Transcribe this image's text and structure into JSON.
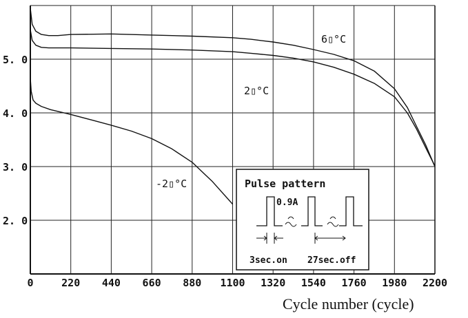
{
  "chart_data": {
    "type": "line",
    "xlabel": "Cycle number (cycle)",
    "ylabel": "",
    "xlim": [
      0,
      2200
    ],
    "ylim": [
      1.0,
      6.0
    ],
    "x_ticks": [
      "0",
      "220",
      "440",
      "660",
      "880",
      "1100",
      "1320",
      "1540",
      "1760",
      "1980",
      "2200"
    ],
    "y_ticks": [
      "2.0",
      "3.0",
      "4.0",
      "5.0"
    ],
    "grid": true,
    "series": [
      {
        "name": "60°C",
        "label_text": "6▯°C",
        "x": [
          0,
          10,
          30,
          60,
          100,
          150,
          220,
          440,
          660,
          880,
          1100,
          1200,
          1320,
          1430,
          1540,
          1650,
          1760,
          1870,
          1980,
          2050,
          2100,
          2150,
          2175,
          2190,
          2200
        ],
        "y": [
          5.95,
          5.65,
          5.52,
          5.46,
          5.44,
          5.44,
          5.46,
          5.47,
          5.45,
          5.43,
          5.4,
          5.37,
          5.32,
          5.26,
          5.18,
          5.09,
          4.97,
          4.78,
          4.45,
          4.1,
          3.75,
          3.4,
          3.2,
          3.08,
          3.0
        ]
      },
      {
        "name": "20°C",
        "label_text": "2▯°C",
        "x": [
          0,
          10,
          30,
          60,
          100,
          150,
          220,
          440,
          660,
          880,
          1100,
          1200,
          1320,
          1430,
          1540,
          1650,
          1760,
          1870,
          1980,
          2050,
          2100,
          2150,
          2175,
          2190,
          2200
        ],
        "y": [
          5.55,
          5.35,
          5.26,
          5.22,
          5.21,
          5.21,
          5.21,
          5.2,
          5.19,
          5.17,
          5.14,
          5.11,
          5.07,
          5.02,
          4.95,
          4.85,
          4.72,
          4.55,
          4.3,
          4.0,
          3.7,
          3.35,
          3.18,
          3.08,
          3.0
        ]
      },
      {
        "name": "-20°C",
        "label_text": "-2▯°C",
        "x": [
          0,
          5,
          15,
          30,
          60,
          110,
          220,
          330,
          440,
          550,
          660,
          770,
          880,
          990,
          1100
        ],
        "y": [
          4.65,
          4.4,
          4.24,
          4.18,
          4.12,
          4.06,
          3.97,
          3.87,
          3.77,
          3.66,
          3.52,
          3.33,
          3.08,
          2.72,
          2.3
        ]
      }
    ],
    "inset": {
      "title": "Pulse pattern",
      "current_label": "0.9A",
      "on_label": "3sec.on",
      "off_label": "27sec.off"
    }
  }
}
